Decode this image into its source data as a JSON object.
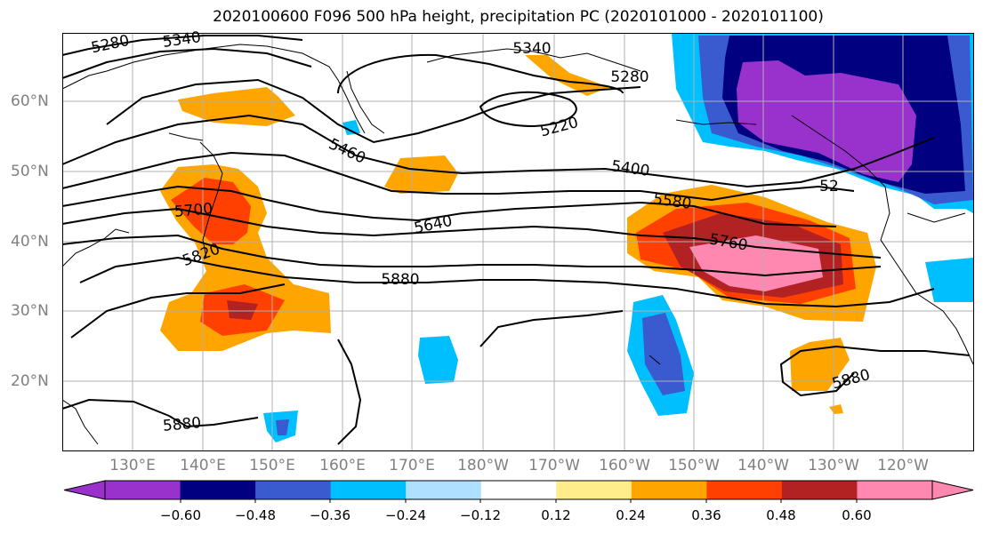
{
  "title": "2020100600 F096 500 hPa height, precipitation PC (2020101000 - 2020101100)",
  "lat_labels": [
    "60°N",
    "50°N",
    "40°N",
    "30°N",
    "20°N"
  ],
  "lon_labels": [
    "130°E",
    "140°E",
    "150°E",
    "160°E",
    "170°E",
    "180°W",
    "170°W",
    "160°W",
    "150°W",
    "140°W",
    "130°W",
    "120°W"
  ],
  "contour_labels": [
    "5280",
    "5340",
    "5340",
    "5280",
    "5220",
    "5460",
    "5400",
    "5580",
    "5640",
    "5700",
    "5760",
    "5820",
    "5880",
    "5880",
    "5880",
    "52"
  ],
  "colorbar": {
    "colors": [
      "#9932cc",
      "#000080",
      "#3a5bcf",
      "#00bfff",
      "#b0e0ff",
      "#ffffff",
      "#ffec8b",
      "#ffa500",
      "#ff4000",
      "#b22222",
      "#ff88b0"
    ],
    "extend_min_color": "#9932cc",
    "extend_max_color": "#ff88b0",
    "tick_labels": [
      "−0.60",
      "−0.48",
      "−0.36",
      "−0.24",
      "−0.12",
      "0.12",
      "0.24",
      "0.36",
      "0.48",
      "0.60"
    ]
  },
  "colors": {
    "land_border": "#000000",
    "grid": "#b0b0b0",
    "axis_label": "#808080"
  }
}
